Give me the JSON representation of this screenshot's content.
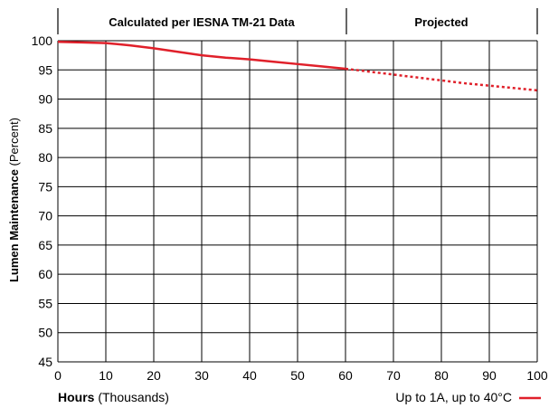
{
  "chart_data": {
    "type": "line",
    "header_sections": [
      {
        "label": "Calculated per IESNA TM-21 Data",
        "x_start": 0,
        "x_end": 60
      },
      {
        "label": "Projected",
        "x_start": 60,
        "x_end": 100
      }
    ],
    "xlabel": {
      "bold": "Hours",
      "normal": " (Thousands)"
    },
    "ylabel": {
      "bold": "Lumen Maintenance",
      "normal": " (Percent)"
    },
    "xlim": [
      0,
      100
    ],
    "ylim": [
      45,
      100
    ],
    "xticks": [
      0,
      10,
      20,
      30,
      40,
      50,
      60,
      70,
      80,
      90,
      100
    ],
    "yticks": [
      45,
      50,
      55,
      60,
      65,
      70,
      75,
      80,
      85,
      90,
      95,
      100
    ],
    "grid": true,
    "color": "#e0202a",
    "series": [
      {
        "name": "Up to 1A, up to  40°C",
        "calculated": {
          "x": [
            0,
            5,
            10,
            15,
            20,
            25,
            30,
            35,
            40,
            45,
            50,
            55,
            60
          ],
          "y": [
            99.8,
            99.7,
            99.6,
            99.2,
            98.7,
            98.1,
            97.5,
            97.1,
            96.8,
            96.4,
            96.0,
            95.6,
            95.2
          ]
        },
        "projected": {
          "x": [
            60,
            65,
            70,
            75,
            80,
            85,
            90,
            95,
            100
          ],
          "y": [
            95.2,
            94.7,
            94.2,
            93.7,
            93.2,
            92.7,
            92.3,
            91.9,
            91.5
          ]
        }
      }
    ],
    "legend_position": "bottom-right"
  }
}
